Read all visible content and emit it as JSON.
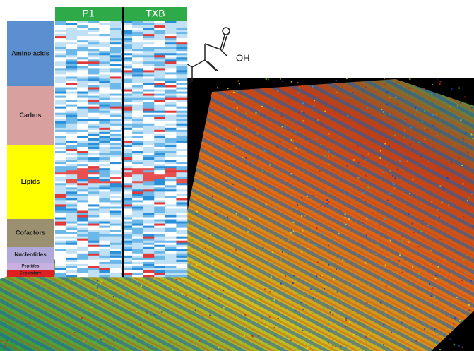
{
  "heatmap": {
    "columns": [
      "P1",
      "TXB"
    ],
    "groups": [
      "Amino acids",
      "Carbos",
      "Lipids",
      "Cofactors",
      "Nucleotides",
      "Peptides",
      "Secondary"
    ]
  },
  "molecule": {
    "label": "OH"
  }
}
